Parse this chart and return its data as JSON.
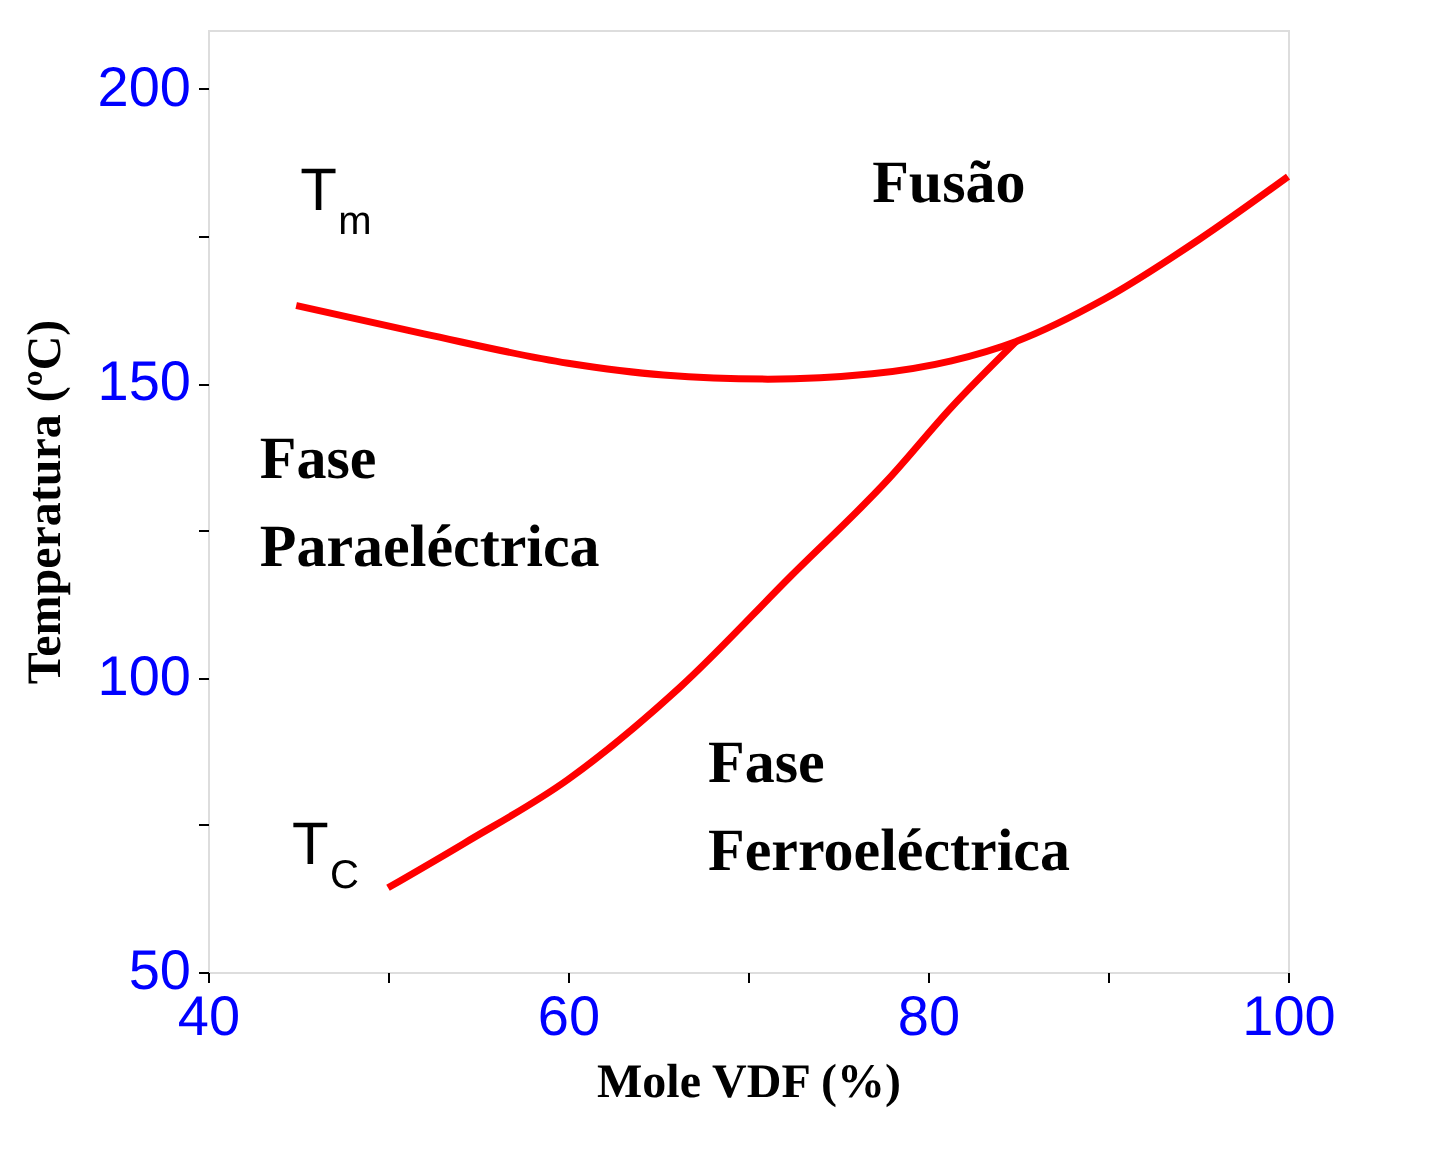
{
  "chart_data": {
    "type": "line",
    "xlabel": "Mole VDF (%)",
    "ylabel": "Temperatura (ºC)",
    "xlim": [
      40,
      100
    ],
    "ylim": [
      50,
      210
    ],
    "xticks": [
      40,
      {
        "value": 50,
        "label": null
      },
      60,
      {
        "value": 70,
        "label": null
      },
      80,
      {
        "value": 90,
        "label": null
      },
      100
    ],
    "yticks": [
      50,
      {
        "value": 75,
        "label": null
      },
      100,
      {
        "value": 125,
        "label": null
      },
      150,
      {
        "value": 175,
        "label": null
      },
      200
    ],
    "grid": false,
    "marker": "none",
    "line_style": "solid",
    "series": [
      {
        "name": "T$_{m}$",
        "color": "#ff0000",
        "x": [
          44.9,
          52,
          60,
          65.3,
          71.1,
          76.9,
          81.3,
          84.9,
          89.8,
          95.1,
          100
        ],
        "values": [
          163.2,
          158.4,
          153.4,
          151.4,
          150.7,
          151.6,
          153.8,
          157.1,
          164.3,
          174.5,
          185.1
        ]
      },
      {
        "name": "T$_{C}$",
        "color": "#ff0000",
        "x": [
          50,
          54.2,
          60,
          66.2,
          72.4,
          77.8,
          81.3,
          84.9
        ],
        "values": [
          64.3,
          71.8,
          82.7,
          98.3,
          117.3,
          133.7,
          145.9,
          157.1
        ]
      }
    ],
    "annotations": [
      "Fusão",
      "Fase\nParaeléctrica",
      "Fase\nFerroeléctrica"
    ]
  }
}
